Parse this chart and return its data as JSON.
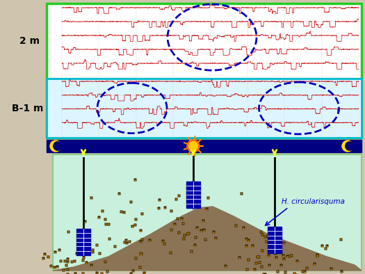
{
  "bg_color": "#cfc5ae",
  "top_panel_border_green": "#22cc22",
  "top_panel_border_cyan": "#00bbcc",
  "bottom_panel_bg": "#c8f0dc",
  "bottom_panel_border": "#88cc88",
  "timeline_bar_bg": "#000080",
  "label_2m": "2 m",
  "label_B1m": "B-1 m",
  "annotation_text": "H. circularisquma",
  "moon_color": "#ffdd00",
  "sun_color": "#ff8800",
  "arrow_color": "#ffff00",
  "dashed_circle_color": "#0000bb",
  "signal_color_red": "#cc0000",
  "upper_panel_bg": "#ffffff",
  "lower_panel_bg": "#ddf5ff",
  "equipment_color": "#0000aa",
  "floor_color": "#8B7355",
  "organism_color": "#3a2800"
}
